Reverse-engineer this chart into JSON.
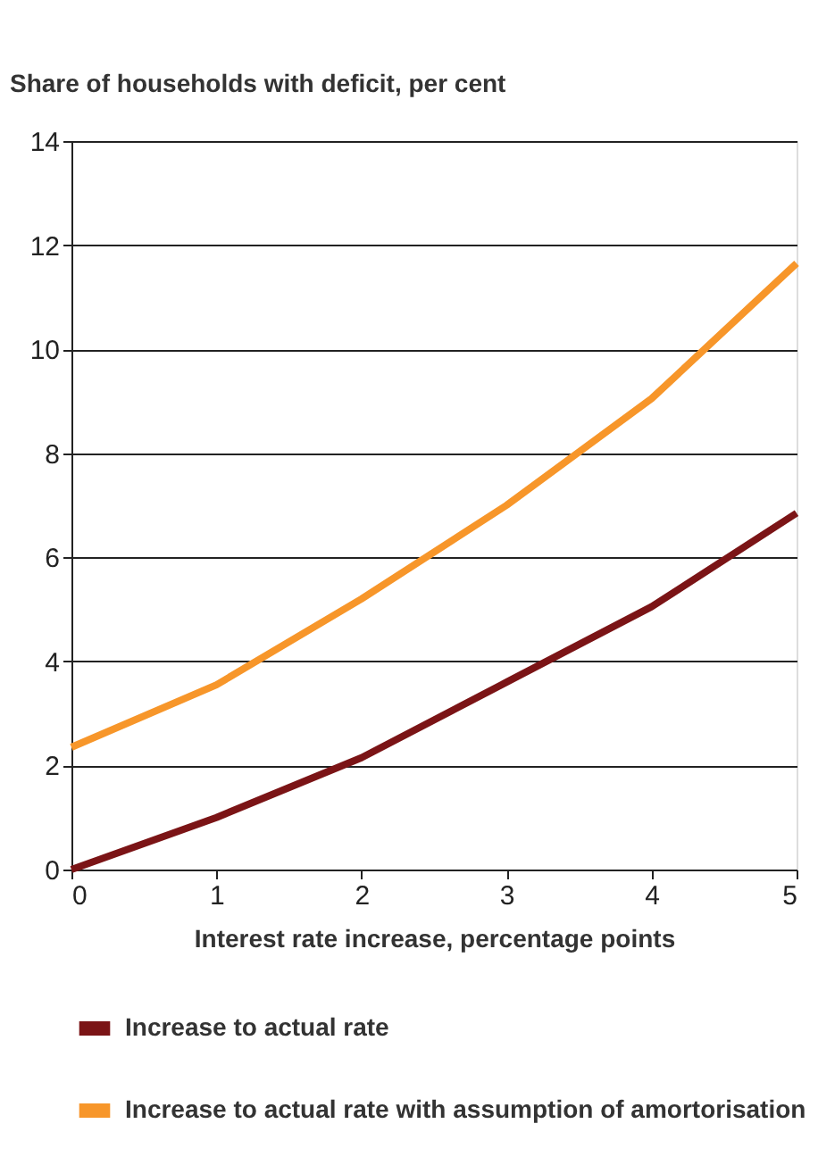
{
  "chart_data": {
    "type": "line",
    "ylabel": "Share of households with deficit, per cent",
    "xlabel": "Interest rate increase, percentage points",
    "x": [
      0,
      1,
      2,
      3,
      4,
      5
    ],
    "series": [
      {
        "name": "Increase to actual rate",
        "color": "#7b1416",
        "values": [
          0,
          1.0,
          2.15,
          3.6,
          5.05,
          6.85
        ]
      },
      {
        "name": "Increase to actual rate with assumption of amortorisation",
        "color": "#f7962a",
        "values": [
          2.35,
          3.55,
          5.2,
          7.0,
          9.05,
          11.65
        ]
      }
    ],
    "xlim": [
      0,
      5
    ],
    "xticks": [
      0,
      1,
      2,
      3,
      4,
      5
    ],
    "ylim": [
      0,
      14
    ],
    "yticks": [
      0,
      2,
      4,
      6,
      8,
      10,
      12,
      14
    ],
    "grid": "y",
    "legend": "bottom",
    "marker": "none",
    "line_style": "solid"
  }
}
